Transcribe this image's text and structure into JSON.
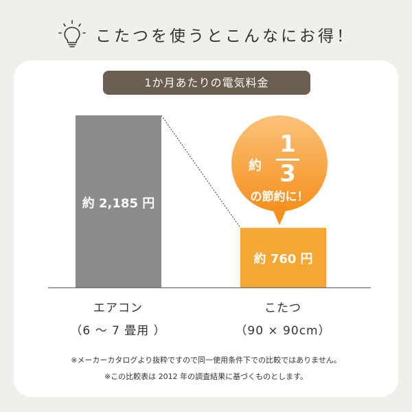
{
  "header": {
    "title": "こたつを使うとこんなにお得！",
    "icon": "lightbulb-icon"
  },
  "subtitle": "1か月あたりの電気料金",
  "chart_data": {
    "type": "bar",
    "title": "1か月あたりの電気料金",
    "categories": [
      "エアコン（6〜7畳用）",
      "こたつ（90×90cm）"
    ],
    "values": [
      2185,
      760
    ],
    "value_labels": [
      "約 2,185 円",
      "約 760 円"
    ],
    "colors": [
      "#8c8c8c",
      "#f5a733"
    ],
    "unit": "円",
    "grid": false
  },
  "categories": [
    {
      "name": "エアコン",
      "detail": "（6 〜 7 畳用 ）"
    },
    {
      "name": "こたつ",
      "detail": "（90 × 90cm）"
    }
  ],
  "callout": {
    "prefix": "約",
    "numerator": "1",
    "denominator": "3",
    "suffix": "の節約に！",
    "color": "#f5962a"
  },
  "notes": [
    "※メーカーカタログより抜粋ですので同一使用条件下での比較ではありません。",
    "※この比較表は 2012 年の調査結果に基づくものとします。"
  ]
}
